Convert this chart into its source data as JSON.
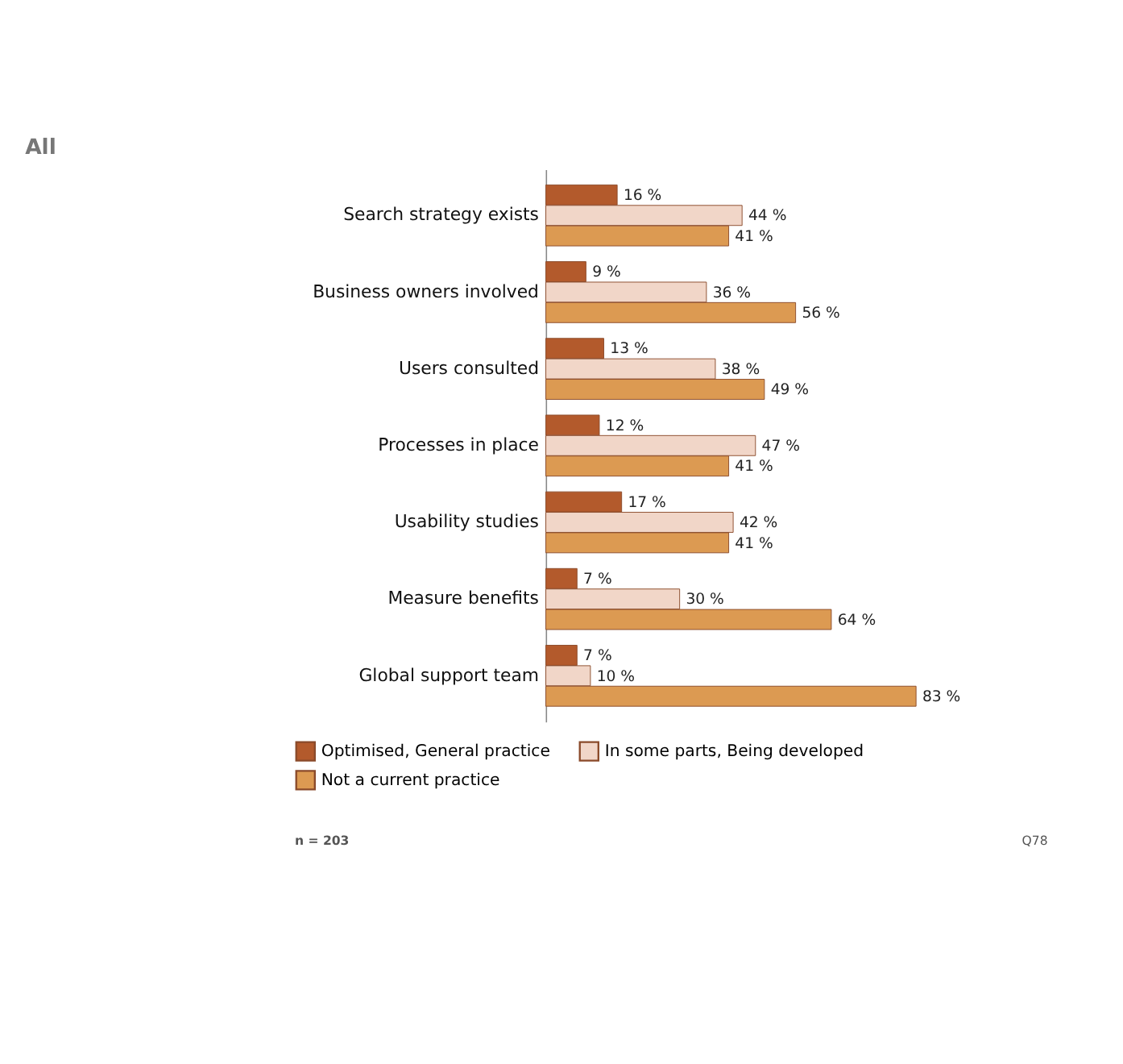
{
  "chart_data": {
    "type": "bar",
    "orientation": "horizontal",
    "title": "All",
    "legend": "bottom left",
    "categories": [
      "Search strategy exists",
      "Business owners involved",
      "Users consulted",
      "Processes in place",
      "Usability studies",
      "Measure benefits",
      "Global support team"
    ],
    "series": [
      {
        "name": "Optimised, General practice",
        "color": "#b35a2c",
        "values": [
          16,
          9,
          13,
          12,
          17,
          7,
          7
        ],
        "value_labels": [
          "16 %",
          "9 %",
          "13 %",
          "12 %",
          "17 %",
          "7 %",
          "7 %"
        ]
      },
      {
        "name": "In some parts, Being developed",
        "color": "#f1d6c8",
        "values": [
          44,
          36,
          38,
          47,
          42,
          30,
          10
        ],
        "value_labels": [
          "44 %",
          "36 %",
          "38 %",
          "47 %",
          "42 %",
          "30 %",
          "10 %"
        ]
      },
      {
        "name": "Not a current practice",
        "color": "#dc9a52",
        "values": [
          41,
          56,
          49,
          41,
          41,
          64,
          83
        ],
        "value_labels": [
          "41 %",
          "56 %",
          "49 %",
          "41 %",
          "41 %",
          "64 %",
          "83 %"
        ]
      }
    ],
    "annotations": [
      "n = 203",
      "Q78"
    ]
  }
}
